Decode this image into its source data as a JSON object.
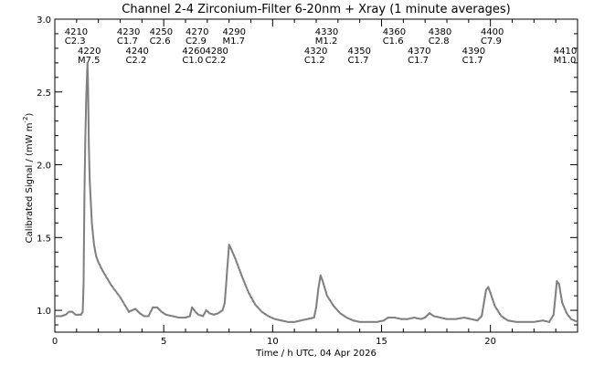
{
  "chart_data": {
    "type": "scatter",
    "title": "Channel 2-4   Zirconium-Filter   6-20nm + Xray   (1 minute averages)",
    "xlabel": "Time / h UTC, 04 Apr 2026",
    "ylabel_main": "Calibrated Signal / (mW m",
    "ylabel_sup": "-2",
    "ylabel_tail": ")",
    "xlim": [
      0,
      24
    ],
    "ylim": [
      0.85,
      3.0
    ],
    "x_ticks": [
      0,
      5,
      10,
      15,
      20
    ],
    "y_ticks": [
      1.0,
      1.5,
      2.0,
      2.5,
      3.0
    ],
    "y_tick_labels": [
      "1.0",
      "1.5",
      "2.0",
      "2.5",
      "3.0"
    ],
    "grid": false,
    "marker_color": "#808080",
    "series": [
      {
        "points": [
          [
            0.0,
            0.96
          ],
          [
            0.3,
            0.96
          ],
          [
            0.5,
            0.97
          ],
          [
            0.65,
            0.99
          ],
          [
            0.8,
            0.99
          ],
          [
            0.95,
            0.97
          ],
          [
            1.1,
            0.97
          ],
          [
            1.2,
            0.97
          ],
          [
            1.28,
            0.99
          ],
          [
            1.32,
            1.18
          ],
          [
            1.36,
            1.8
          ],
          [
            1.4,
            2.18
          ],
          [
            1.44,
            2.45
          ],
          [
            1.48,
            2.62
          ],
          [
            1.5,
            2.7
          ],
          [
            1.53,
            2.5
          ],
          [
            1.56,
            2.15
          ],
          [
            1.6,
            1.9
          ],
          [
            1.65,
            1.75
          ],
          [
            1.7,
            1.6
          ],
          [
            1.8,
            1.45
          ],
          [
            1.9,
            1.37
          ],
          [
            2.0,
            1.33
          ],
          [
            2.2,
            1.27
          ],
          [
            2.4,
            1.22
          ],
          [
            2.6,
            1.17
          ],
          [
            2.8,
            1.13
          ],
          [
            3.0,
            1.09
          ],
          [
            3.2,
            1.04
          ],
          [
            3.4,
            0.99
          ],
          [
            3.55,
            1.0
          ],
          [
            3.7,
            1.01
          ],
          [
            3.9,
            0.98
          ],
          [
            4.1,
            0.96
          ],
          [
            4.3,
            0.96
          ],
          [
            4.5,
            1.02
          ],
          [
            4.7,
            1.02
          ],
          [
            4.9,
            0.99
          ],
          [
            5.1,
            0.97
          ],
          [
            5.4,
            0.96
          ],
          [
            5.7,
            0.95
          ],
          [
            6.0,
            0.95
          ],
          [
            6.2,
            0.96
          ],
          [
            6.3,
            1.02
          ],
          [
            6.45,
            0.99
          ],
          [
            6.6,
            0.97
          ],
          [
            6.8,
            0.96
          ],
          [
            6.95,
            1.0
          ],
          [
            7.1,
            0.98
          ],
          [
            7.3,
            0.97
          ],
          [
            7.5,
            0.98
          ],
          [
            7.7,
            1.0
          ],
          [
            7.8,
            1.05
          ],
          [
            7.9,
            1.25
          ],
          [
            8.0,
            1.45
          ],
          [
            8.1,
            1.42
          ],
          [
            8.3,
            1.35
          ],
          [
            8.6,
            1.23
          ],
          [
            8.9,
            1.12
          ],
          [
            9.2,
            1.04
          ],
          [
            9.5,
            0.99
          ],
          [
            9.8,
            0.96
          ],
          [
            10.1,
            0.94
          ],
          [
            10.4,
            0.93
          ],
          [
            10.7,
            0.92
          ],
          [
            11.0,
            0.92
          ],
          [
            11.3,
            0.93
          ],
          [
            11.6,
            0.94
          ],
          [
            11.9,
            0.95
          ],
          [
            12.0,
            1.02
          ],
          [
            12.1,
            1.15
          ],
          [
            12.2,
            1.24
          ],
          [
            12.3,
            1.2
          ],
          [
            12.5,
            1.1
          ],
          [
            12.8,
            1.03
          ],
          [
            13.1,
            0.98
          ],
          [
            13.4,
            0.95
          ],
          [
            13.7,
            0.93
          ],
          [
            14.0,
            0.92
          ],
          [
            14.4,
            0.92
          ],
          [
            14.8,
            0.92
          ],
          [
            15.1,
            0.93
          ],
          [
            15.3,
            0.95
          ],
          [
            15.6,
            0.95
          ],
          [
            15.9,
            0.94
          ],
          [
            16.2,
            0.94
          ],
          [
            16.5,
            0.95
          ],
          [
            16.8,
            0.94
          ],
          [
            17.0,
            0.95
          ],
          [
            17.2,
            0.98
          ],
          [
            17.4,
            0.96
          ],
          [
            17.7,
            0.95
          ],
          [
            18.0,
            0.94
          ],
          [
            18.4,
            0.94
          ],
          [
            18.8,
            0.95
          ],
          [
            19.1,
            0.94
          ],
          [
            19.4,
            0.93
          ],
          [
            19.6,
            0.96
          ],
          [
            19.7,
            1.05
          ],
          [
            19.8,
            1.14
          ],
          [
            19.9,
            1.16
          ],
          [
            20.0,
            1.12
          ],
          [
            20.2,
            1.03
          ],
          [
            20.5,
            0.96
          ],
          [
            20.8,
            0.93
          ],
          [
            21.2,
            0.92
          ],
          [
            21.6,
            0.92
          ],
          [
            22.0,
            0.92
          ],
          [
            22.4,
            0.93
          ],
          [
            22.7,
            0.92
          ],
          [
            22.9,
            0.97
          ],
          [
            23.0,
            1.12
          ],
          [
            23.05,
            1.2
          ],
          [
            23.15,
            1.18
          ],
          [
            23.3,
            1.05
          ],
          [
            23.5,
            0.98
          ],
          [
            23.7,
            0.94
          ],
          [
            24.0,
            0.92
          ]
        ]
      }
    ],
    "annotations": [
      {
        "number": "4210",
        "class": "C2.3",
        "x": 0.45,
        "row": 1
      },
      {
        "number": "4220",
        "class": "M7.5",
        "x": 1.05,
        "row": 2
      },
      {
        "number": "4230",
        "class": "C1.7",
        "x": 2.85,
        "row": 1
      },
      {
        "number": "4240",
        "class": "C2.2",
        "x": 3.25,
        "row": 2
      },
      {
        "number": "4250",
        "class": "C2.6",
        "x": 4.35,
        "row": 1
      },
      {
        "number": "4260",
        "class": "C1.0",
        "x": 5.85,
        "row": 2
      },
      {
        "number": "4270",
        "class": "C2.9",
        "x": 6.0,
        "row": 1
      },
      {
        "number": "4280",
        "class": "C2.2",
        "x": 6.9,
        "row": 2
      },
      {
        "number": "4290",
        "class": "M1.7",
        "x": 7.7,
        "row": 1
      },
      {
        "number": "4320",
        "class": "C1.2",
        "x": 11.45,
        "row": 2
      },
      {
        "number": "4330",
        "class": "M1.2",
        "x": 11.95,
        "row": 1
      },
      {
        "number": "4350",
        "class": "C1.7",
        "x": 13.45,
        "row": 2
      },
      {
        "number": "4360",
        "class": "C1.6",
        "x": 15.05,
        "row": 1
      },
      {
        "number": "4370",
        "class": "C1.7",
        "x": 16.2,
        "row": 2
      },
      {
        "number": "4380",
        "class": "C2.8",
        "x": 17.15,
        "row": 1
      },
      {
        "number": "4390",
        "class": "C1.7",
        "x": 18.7,
        "row": 2
      },
      {
        "number": "4400",
        "class": "C7.9",
        "x": 19.55,
        "row": 1
      },
      {
        "number": "4410",
        "class": "M1.0",
        "x": 22.9,
        "row": 2
      }
    ]
  }
}
